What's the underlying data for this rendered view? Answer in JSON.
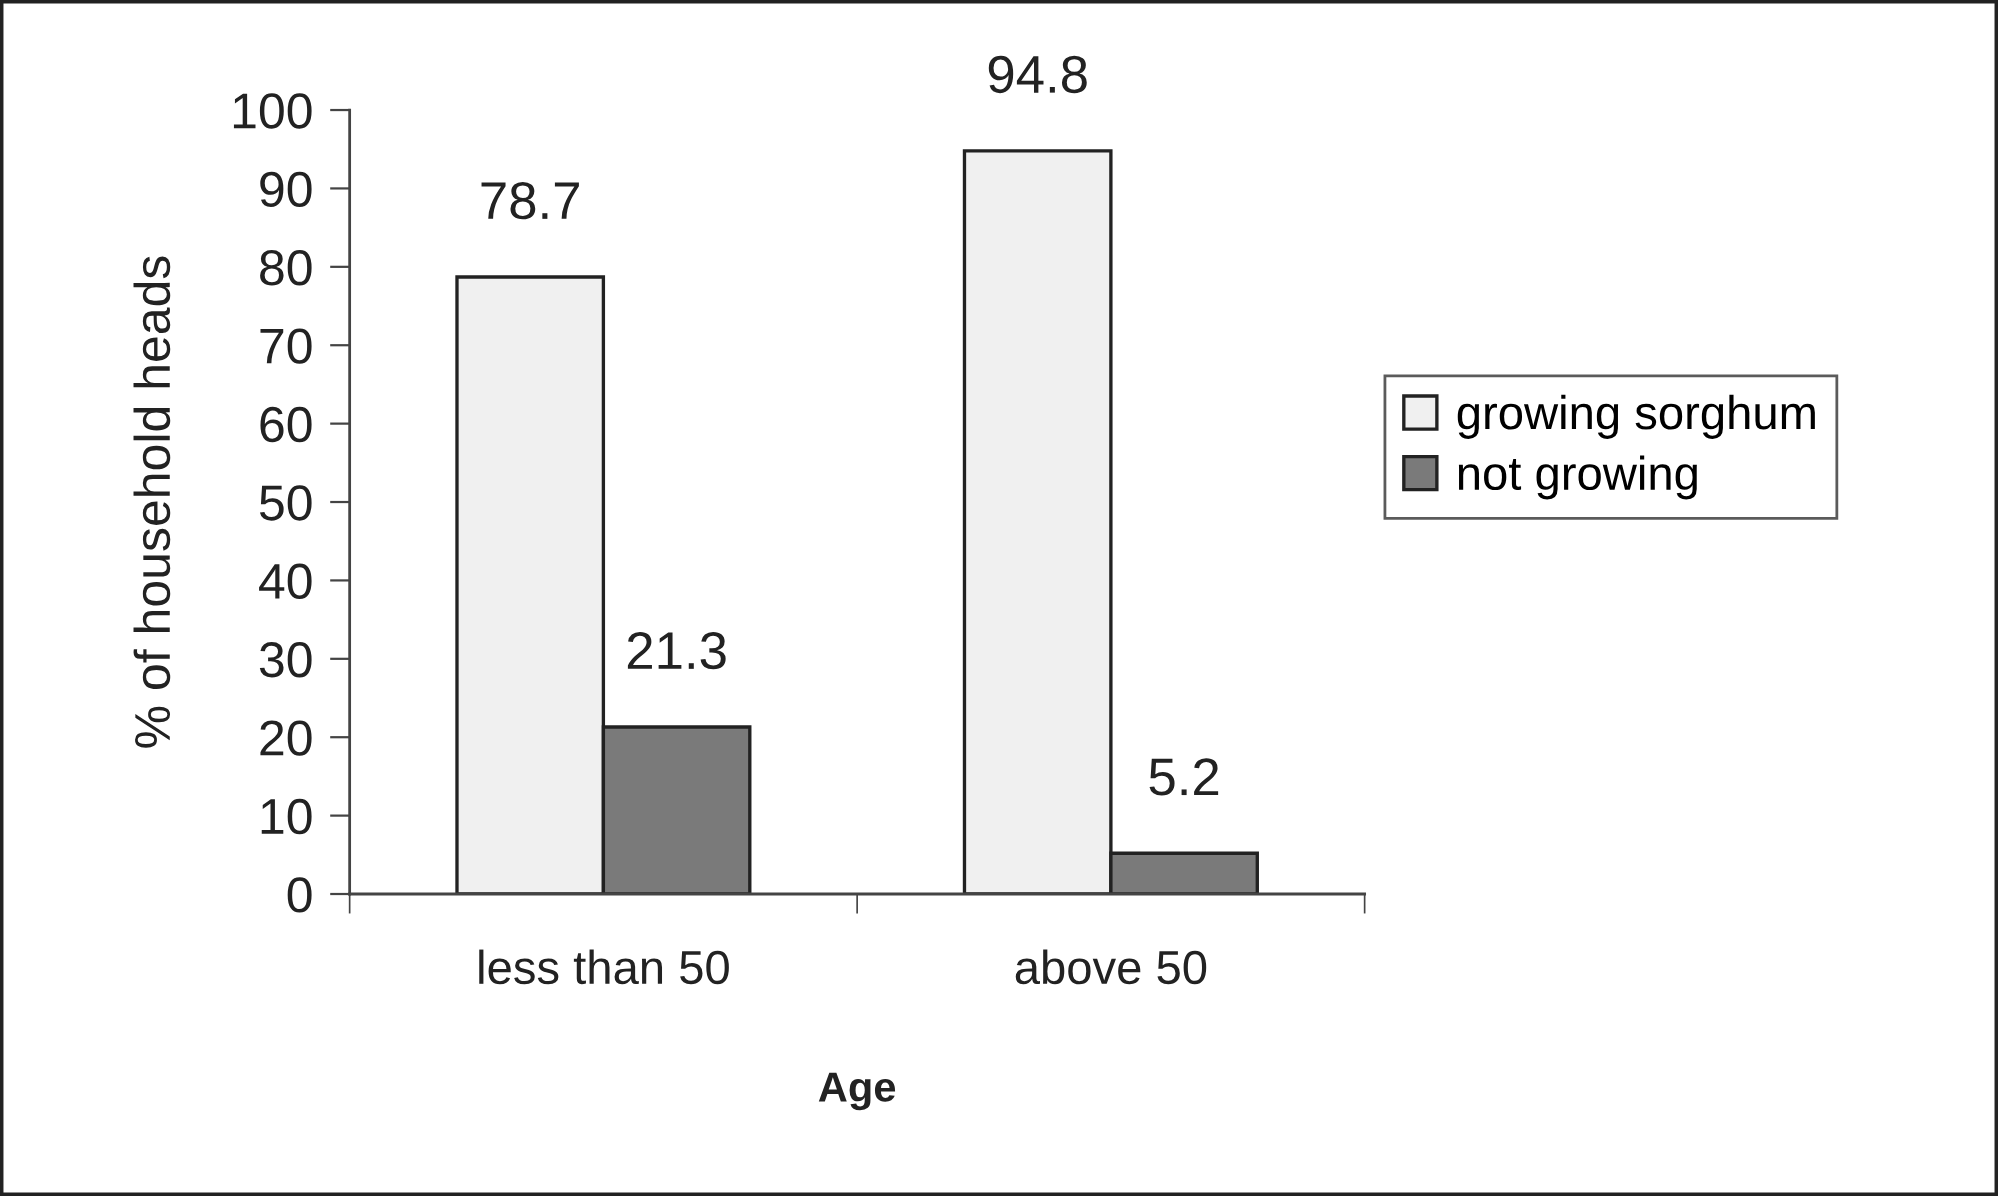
{
  "chart_data": {
    "type": "bar",
    "xlabel": "Age",
    "ylabel": "% of household heads",
    "categories": [
      "less than 50",
      "above 50"
    ],
    "series": [
      {
        "name": "growing sorghum",
        "color": "#f0f0f0",
        "values": [
          78.7,
          94.8
        ]
      },
      {
        "name": "not growing",
        "color": "#7a7a7a",
        "values": [
          21.3,
          5.2
        ]
      }
    ],
    "ylim": [
      0,
      100
    ],
    "yticks": [
      0,
      10,
      20,
      30,
      40,
      50,
      60,
      70,
      80,
      90,
      100
    ],
    "data_labels": true,
    "legend": "right",
    "grid": false
  }
}
